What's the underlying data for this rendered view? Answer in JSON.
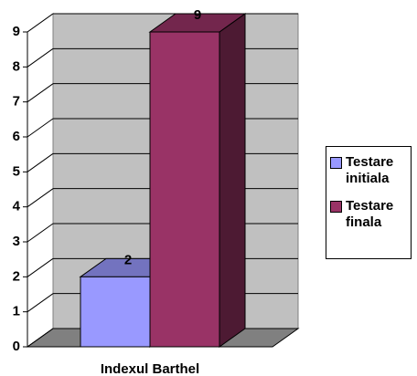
{
  "chart_data": {
    "type": "bar3d",
    "categories": [
      "Indexul Barthel"
    ],
    "series": [
      {
        "name": "Testare initiala",
        "color": "#9999ff",
        "values": [
          2
        ],
        "value_labels": [
          "2"
        ]
      },
      {
        "name": "Testare finala",
        "color": "#993366",
        "values": [
          9
        ],
        "value_labels": [
          "9"
        ]
      }
    ],
    "ylim": [
      0,
      9
    ],
    "yticks": [
      0,
      1,
      2,
      3,
      4,
      5,
      6,
      7,
      8,
      9
    ],
    "grid": true,
    "legend": "right"
  }
}
